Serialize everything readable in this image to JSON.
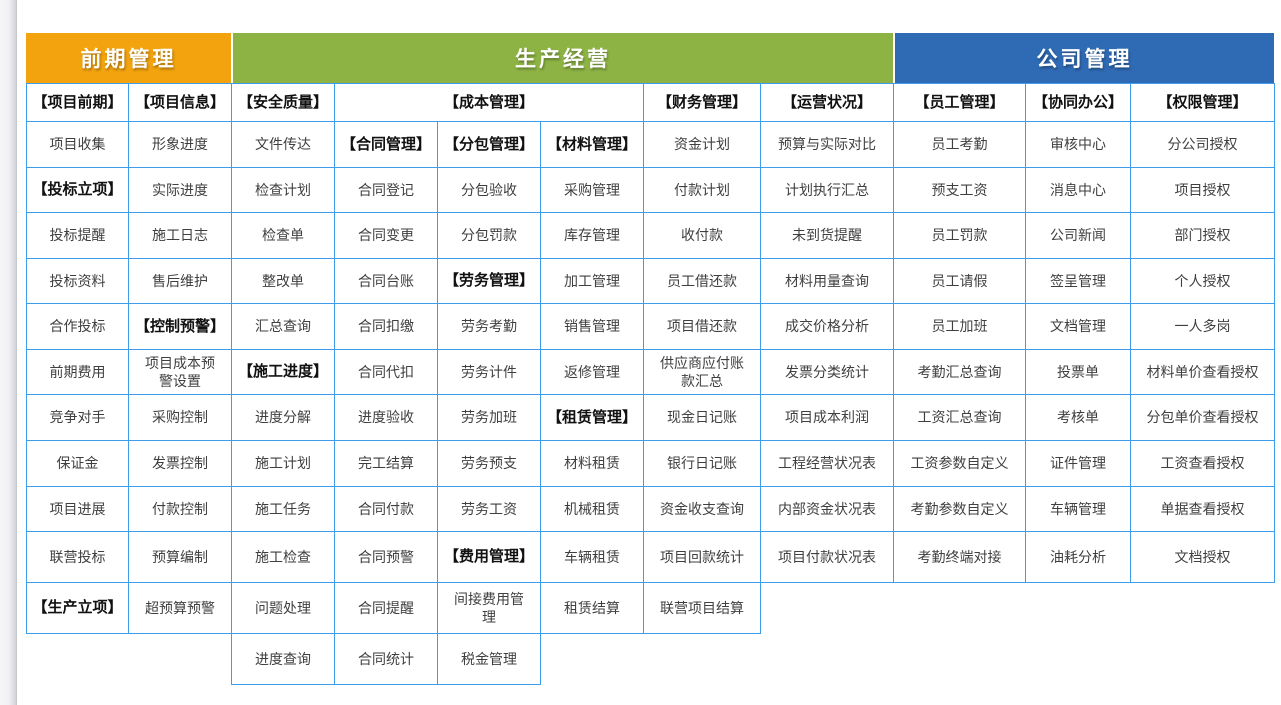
{
  "colors": {
    "band_orange": "#F2A30D",
    "band_green": "#8DB345",
    "band_blue": "#2F6AB4",
    "border": "#3E9CEC",
    "cell_text": "#3F3F3F",
    "category_text": "#111111",
    "band_text": "#FFFFFF"
  },
  "bands": [
    {
      "label": "前期管理",
      "color": "#F2A30D"
    },
    {
      "label": "生产经营",
      "color": "#8DB345"
    },
    {
      "label": "公司管理",
      "color": "#2F6AB4"
    }
  ],
  "cells": [
    [
      1,
      0,
      1,
      "【项目前期】",
      1
    ],
    [
      1,
      1,
      1,
      "【项目信息】",
      1
    ],
    [
      1,
      2,
      1,
      "【安全质量】",
      1
    ],
    [
      1,
      3,
      3,
      "【成本管理】",
      1
    ],
    [
      1,
      6,
      1,
      "【财务管理】",
      1
    ],
    [
      1,
      7,
      1,
      "【运营状况】",
      1
    ],
    [
      1,
      8,
      1,
      "【员工管理】",
      1
    ],
    [
      1,
      9,
      1,
      "【协同办公】",
      1
    ],
    [
      1,
      10,
      1,
      "【权限管理】",
      1
    ],
    [
      2,
      0,
      1,
      "项目收集",
      0
    ],
    [
      2,
      1,
      1,
      "形象进度",
      0
    ],
    [
      2,
      2,
      1,
      "文件传达",
      0
    ],
    [
      2,
      3,
      1,
      "【合同管理】",
      1
    ],
    [
      2,
      4,
      1,
      "【分包管理】",
      1
    ],
    [
      2,
      5,
      1,
      "【材料管理】",
      1
    ],
    [
      2,
      6,
      1,
      "资金计划",
      0
    ],
    [
      2,
      7,
      1,
      "预算与实际对比",
      0
    ],
    [
      2,
      8,
      1,
      "员工考勤",
      0
    ],
    [
      2,
      9,
      1,
      "审核中心",
      0
    ],
    [
      2,
      10,
      1,
      "分公司授权",
      0
    ],
    [
      3,
      0,
      1,
      "【投标立项】",
      1
    ],
    [
      3,
      1,
      1,
      "实际进度",
      0
    ],
    [
      3,
      2,
      1,
      "检查计划",
      0
    ],
    [
      3,
      3,
      1,
      "合同登记",
      0
    ],
    [
      3,
      4,
      1,
      "分包验收",
      0
    ],
    [
      3,
      5,
      1,
      "采购管理",
      0
    ],
    [
      3,
      6,
      1,
      "付款计划",
      0
    ],
    [
      3,
      7,
      1,
      "计划执行汇总",
      0
    ],
    [
      3,
      8,
      1,
      "预支工资",
      0
    ],
    [
      3,
      9,
      1,
      "消息中心",
      0
    ],
    [
      3,
      10,
      1,
      "项目授权",
      0
    ],
    [
      4,
      0,
      1,
      "投标提醒",
      0
    ],
    [
      4,
      1,
      1,
      "施工日志",
      0
    ],
    [
      4,
      2,
      1,
      "检查单",
      0
    ],
    [
      4,
      3,
      1,
      "合同变更",
      0
    ],
    [
      4,
      4,
      1,
      "分包罚款",
      0
    ],
    [
      4,
      5,
      1,
      "库存管理",
      0
    ],
    [
      4,
      6,
      1,
      "收付款",
      0
    ],
    [
      4,
      7,
      1,
      "未到货提醒",
      0
    ],
    [
      4,
      8,
      1,
      "员工罚款",
      0
    ],
    [
      4,
      9,
      1,
      "公司新闻",
      0
    ],
    [
      4,
      10,
      1,
      "部门授权",
      0
    ],
    [
      5,
      0,
      1,
      "投标资料",
      0
    ],
    [
      5,
      1,
      1,
      "售后维护",
      0
    ],
    [
      5,
      2,
      1,
      "整改单",
      0
    ],
    [
      5,
      3,
      1,
      "合同台账",
      0
    ],
    [
      5,
      4,
      1,
      "【劳务管理】",
      1
    ],
    [
      5,
      5,
      1,
      "加工管理",
      0
    ],
    [
      5,
      6,
      1,
      "员工借还款",
      0
    ],
    [
      5,
      7,
      1,
      "材料用量查询",
      0
    ],
    [
      5,
      8,
      1,
      "员工请假",
      0
    ],
    [
      5,
      9,
      1,
      "签呈管理",
      0
    ],
    [
      5,
      10,
      1,
      "个人授权",
      0
    ],
    [
      6,
      0,
      1,
      "合作投标",
      0
    ],
    [
      6,
      1,
      1,
      "【控制预警】",
      1
    ],
    [
      6,
      2,
      1,
      "汇总查询",
      0
    ],
    [
      6,
      3,
      1,
      "合同扣缴",
      0
    ],
    [
      6,
      4,
      1,
      "劳务考勤",
      0
    ],
    [
      6,
      5,
      1,
      "销售管理",
      0
    ],
    [
      6,
      6,
      1,
      "项目借还款",
      0
    ],
    [
      6,
      7,
      1,
      "成交价格分析",
      0
    ],
    [
      6,
      8,
      1,
      "员工加班",
      0
    ],
    [
      6,
      9,
      1,
      "文档管理",
      0
    ],
    [
      6,
      10,
      1,
      "一人多岗",
      0
    ],
    [
      7,
      0,
      1,
      "前期费用",
      0
    ],
    [
      7,
      1,
      1,
      "项目成本预警设置",
      0
    ],
    [
      7,
      2,
      1,
      "【施工进度】",
      1
    ],
    [
      7,
      3,
      1,
      "合同代扣",
      0
    ],
    [
      7,
      4,
      1,
      "劳务计件",
      0
    ],
    [
      7,
      5,
      1,
      "返修管理",
      0
    ],
    [
      7,
      6,
      1,
      "供应商应付账款汇总",
      0
    ],
    [
      7,
      7,
      1,
      "发票分类统计",
      0
    ],
    [
      7,
      8,
      1,
      "考勤汇总查询",
      0
    ],
    [
      7,
      9,
      1,
      "投票单",
      0
    ],
    [
      7,
      10,
      1,
      "材料单价查看授权",
      0
    ],
    [
      8,
      0,
      1,
      "竞争对手",
      0
    ],
    [
      8,
      1,
      1,
      "采购控制",
      0
    ],
    [
      8,
      2,
      1,
      "进度分解",
      0
    ],
    [
      8,
      3,
      1,
      "进度验收",
      0
    ],
    [
      8,
      4,
      1,
      "劳务加班",
      0
    ],
    [
      8,
      5,
      1,
      "【租赁管理】",
      1
    ],
    [
      8,
      6,
      1,
      "现金日记账",
      0
    ],
    [
      8,
      7,
      1,
      "项目成本利润",
      0
    ],
    [
      8,
      8,
      1,
      "工资汇总查询",
      0
    ],
    [
      8,
      9,
      1,
      "考核单",
      0
    ],
    [
      8,
      10,
      1,
      "分包单价查看授权",
      0
    ],
    [
      9,
      0,
      1,
      "保证金",
      0
    ],
    [
      9,
      1,
      1,
      "发票控制",
      0
    ],
    [
      9,
      2,
      1,
      "施工计划",
      0
    ],
    [
      9,
      3,
      1,
      "完工结算",
      0
    ],
    [
      9,
      4,
      1,
      "劳务预支",
      0
    ],
    [
      9,
      5,
      1,
      "材料租赁",
      0
    ],
    [
      9,
      6,
      1,
      "银行日记账",
      0
    ],
    [
      9,
      7,
      1,
      "工程经营状况表",
      0
    ],
    [
      9,
      8,
      1,
      "工资参数自定义",
      0
    ],
    [
      9,
      9,
      1,
      "证件管理",
      0
    ],
    [
      9,
      10,
      1,
      "工资查看授权",
      0
    ],
    [
      10,
      0,
      1,
      "项目进展",
      0
    ],
    [
      10,
      1,
      1,
      "付款控制",
      0
    ],
    [
      10,
      2,
      1,
      "施工任务",
      0
    ],
    [
      10,
      3,
      1,
      "合同付款",
      0
    ],
    [
      10,
      4,
      1,
      "劳务工资",
      0
    ],
    [
      10,
      5,
      1,
      "机械租赁",
      0
    ],
    [
      10,
      6,
      1,
      "资金收支查询",
      0
    ],
    [
      10,
      7,
      1,
      "内部资金状况表",
      0
    ],
    [
      10,
      8,
      1,
      "考勤参数自定义",
      0
    ],
    [
      10,
      9,
      1,
      "车辆管理",
      0
    ],
    [
      10,
      10,
      1,
      "单据查看授权",
      0
    ],
    [
      11,
      0,
      1,
      "联营投标",
      0
    ],
    [
      11,
      1,
      1,
      "预算编制",
      0
    ],
    [
      11,
      2,
      1,
      "施工检查",
      0
    ],
    [
      11,
      3,
      1,
      "合同预警",
      0
    ],
    [
      11,
      4,
      1,
      "【费用管理】",
      1
    ],
    [
      11,
      5,
      1,
      "车辆租赁",
      0
    ],
    [
      11,
      6,
      1,
      "项目回款统计",
      0
    ],
    [
      11,
      7,
      1,
      "项目付款状况表",
      0
    ],
    [
      11,
      8,
      1,
      "考勤终端对接",
      0
    ],
    [
      11,
      9,
      1,
      "油耗分析",
      0
    ],
    [
      11,
      10,
      1,
      "文档授权",
      0
    ],
    [
      12,
      0,
      1,
      "【生产立项】",
      1
    ],
    [
      12,
      1,
      1,
      "超预算预警",
      0
    ],
    [
      12,
      2,
      1,
      "问题处理",
      0
    ],
    [
      12,
      3,
      1,
      "合同提醒",
      0
    ],
    [
      12,
      4,
      1,
      "间接费用管理",
      0
    ],
    [
      12,
      5,
      1,
      "租赁结算",
      0
    ],
    [
      12,
      6,
      1,
      "联营项目结算",
      0
    ],
    [
      13,
      2,
      1,
      "进度查询",
      0
    ],
    [
      13,
      3,
      1,
      "合同统计",
      0
    ],
    [
      13,
      4,
      1,
      "税金管理",
      0
    ]
  ]
}
